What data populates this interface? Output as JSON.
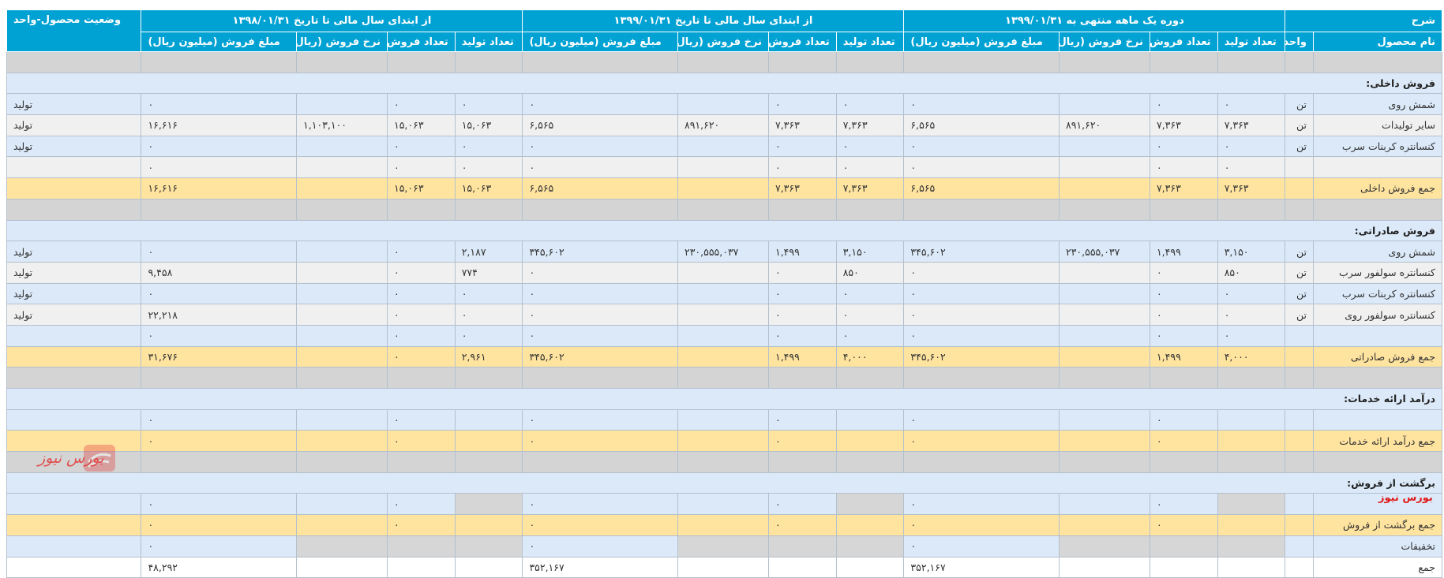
{
  "header": {
    "top": [
      "شرح",
      "دوره یک ماهه منتهی به ۱۳۹۹/۰۱/۳۱",
      "از ابتدای سال مالی تا تاریخ ۱۳۹۹/۰۱/۳۱",
      "از ابتدای سال مالی تا تاریخ ۱۳۹۸/۰۱/۳۱",
      "وضعیت محصول-واحد"
    ],
    "sub": [
      "نام محصول",
      "واحد",
      "تعداد تولید",
      "تعداد فروش",
      "نرخ فروش (ریال)",
      "مبلغ فروش (میلیون ریال)",
      "تعداد تولید",
      "تعداد فروش",
      "نرخ فروش (ریال)",
      "مبلغ فروش (میلیون ریال)",
      "تعداد تولید",
      "تعداد فروش",
      "نرخ فروش (ریال)",
      "مبلغ فروش (میلیون ریال)"
    ]
  },
  "rows": [
    {
      "type": "sep",
      "c": [
        "",
        "",
        "",
        "",
        "",
        "",
        "",
        "",
        "",
        "",
        "",
        "",
        "",
        "",
        ""
      ]
    },
    {
      "type": "section",
      "c": [
        "فروش داخلی:"
      ]
    },
    {
      "type": "blue",
      "c": [
        "شمش روی",
        "تن",
        "۰",
        "۰",
        "",
        "۰",
        "۰",
        "۰",
        "",
        "۰",
        "۰",
        "۰",
        "",
        "۰",
        "تولید"
      ]
    },
    {
      "type": "gray",
      "c": [
        "سایر تولیدات",
        "تن",
        "۷,۳۶۳",
        "۷,۳۶۳",
        "۸۹۱,۶۲۰",
        "۶,۵۶۵",
        "۷,۳۶۳",
        "۷,۳۶۳",
        "۸۹۱,۶۲۰",
        "۶,۵۶۵",
        "۱۵,۰۶۳",
        "۱۵,۰۶۳",
        "۱,۱۰۳,۱۰۰",
        "۱۶,۶۱۶",
        "تولید"
      ]
    },
    {
      "type": "blue",
      "c": [
        "کنسانتره کربنات سرب",
        "تن",
        "۰",
        "۰",
        "",
        "۰",
        "۰",
        "۰",
        "",
        "۰",
        "۰",
        "۰",
        "",
        "۰",
        "تولید"
      ]
    },
    {
      "type": "gray",
      "c": [
        "",
        "",
        "۰",
        "۰",
        "",
        "۰",
        "۰",
        "۰",
        "",
        "۰",
        "۰",
        "۰",
        "",
        "۰",
        ""
      ]
    },
    {
      "type": "sub",
      "c": [
        "جمع فروش داخلی",
        "",
        "۷,۳۶۳",
        "۷,۳۶۳",
        "",
        "۶,۵۶۵",
        "۷,۳۶۳",
        "۷,۳۶۳",
        "",
        "۶,۵۶۵",
        "۱۵,۰۶۳",
        "۱۵,۰۶۳",
        "",
        "۱۶,۶۱۶",
        ""
      ]
    },
    {
      "type": "sep",
      "c": [
        "",
        "",
        "",
        "",
        "",
        "",
        "",
        "",
        "",
        "",
        "",
        "",
        "",
        "",
        ""
      ]
    },
    {
      "type": "section",
      "c": [
        "فروش صادراتی:"
      ]
    },
    {
      "type": "blue",
      "c": [
        "شمش روی",
        "تن",
        "۳,۱۵۰",
        "۱,۴۹۹",
        "۲۳۰,۵۵۵,۰۳۷",
        "۳۴۵,۶۰۲",
        "۳,۱۵۰",
        "۱,۴۹۹",
        "۲۳۰,۵۵۵,۰۳۷",
        "۳۴۵,۶۰۲",
        "۲,۱۸۷",
        "۰",
        "",
        "۰",
        "تولید"
      ]
    },
    {
      "type": "gray",
      "c": [
        "کنسانتره سولفور سرب",
        "تن",
        "۸۵۰",
        "۰",
        "",
        "۰",
        "۸۵۰",
        "۰",
        "",
        "۰",
        "۷۷۴",
        "۰",
        "",
        "۹,۴۵۸",
        "تولید"
      ]
    },
    {
      "type": "blue",
      "c": [
        "کنسانتره کربنات سرب",
        "تن",
        "۰",
        "۰",
        "",
        "۰",
        "۰",
        "۰",
        "",
        "۰",
        "۰",
        "۰",
        "",
        "۰",
        "تولید"
      ]
    },
    {
      "type": "gray",
      "c": [
        "کنسانتره سولفور روی",
        "تن",
        "۰",
        "۰",
        "",
        "۰",
        "۰",
        "۰",
        "",
        "۰",
        "۰",
        "۰",
        "",
        "۲۲,۲۱۸",
        "تولید"
      ]
    },
    {
      "type": "blue",
      "c": [
        "",
        "",
        "۰",
        "۰",
        "",
        "۰",
        "۰",
        "۰",
        "",
        "۰",
        "۰",
        "۰",
        "",
        "۰",
        ""
      ]
    },
    {
      "type": "sub",
      "c": [
        "جمع فروش صادراتی",
        "",
        "۴,۰۰۰",
        "۱,۴۹۹",
        "",
        "۳۴۵,۶۰۲",
        "۴,۰۰۰",
        "۱,۴۹۹",
        "",
        "۳۴۵,۶۰۲",
        "۲,۹۶۱",
        "۰",
        "",
        "۳۱,۶۷۶",
        ""
      ]
    },
    {
      "type": "sep",
      "c": [
        "",
        "",
        "",
        "",
        "",
        "",
        "",
        "",
        "",
        "",
        "",
        "",
        "",
        "",
        ""
      ]
    },
    {
      "type": "section",
      "c": [
        "درآمد ارائه خدمات:"
      ]
    },
    {
      "type": "blue",
      "c": [
        "",
        "",
        "",
        "۰",
        "",
        "۰",
        "",
        "۰",
        "",
        "۰",
        "",
        "۰",
        "",
        "۰",
        ""
      ]
    },
    {
      "type": "sub",
      "c": [
        "جمع درآمد ارائه خدمات",
        "",
        "",
        "۰",
        "",
        "۰",
        "",
        "۰",
        "",
        "۰",
        "",
        "۰",
        "",
        "۰",
        ""
      ]
    },
    {
      "type": "sep",
      "c": [
        "",
        "",
        "",
        "",
        "",
        "",
        "",
        "",
        "",
        "",
        "",
        "",
        "",
        "",
        ""
      ]
    },
    {
      "type": "section",
      "c": [
        "برگشت از فروش:"
      ]
    },
    {
      "type": "blue",
      "dk": [
        2,
        6,
        10
      ],
      "c": [
        "",
        "",
        "",
        "۰",
        "",
        "۰",
        "",
        "۰",
        "",
        "۰",
        "",
        "۰",
        "",
        "۰",
        ""
      ]
    },
    {
      "type": "sub",
      "c": [
        "جمع برگشت از فروش",
        "",
        "",
        "۰",
        "",
        "۰",
        "",
        "۰",
        "",
        "۰",
        "",
        "۰",
        "",
        "۰",
        ""
      ]
    },
    {
      "type": "blue",
      "dk": [
        2,
        3,
        4,
        6,
        7,
        8,
        10,
        11,
        12
      ],
      "c": [
        "تخفیفات",
        "",
        "",
        "",
        "",
        "۰",
        "",
        "",
        "",
        "۰",
        "",
        "",
        "",
        "۰",
        ""
      ]
    },
    {
      "type": "tot",
      "c": [
        "جمع",
        "",
        "",
        "",
        "",
        "۳۵۲,۱۶۷",
        "",
        "",
        "",
        "۳۵۲,۱۶۷",
        "",
        "",
        "",
        "۴۸,۲۹۲",
        ""
      ]
    }
  ],
  "watermark": {
    "logo_text": "بورس نیوز",
    "brand_text": "بورس نیوز",
    "logo_color": "#e23b3b"
  },
  "colors": {
    "header": "#00a1d3",
    "row_blue": "#dbe9f8",
    "row_gray": "#f0f0f0",
    "subtotal": "#ffe4a0",
    "separator": "#d4d4d4"
  }
}
